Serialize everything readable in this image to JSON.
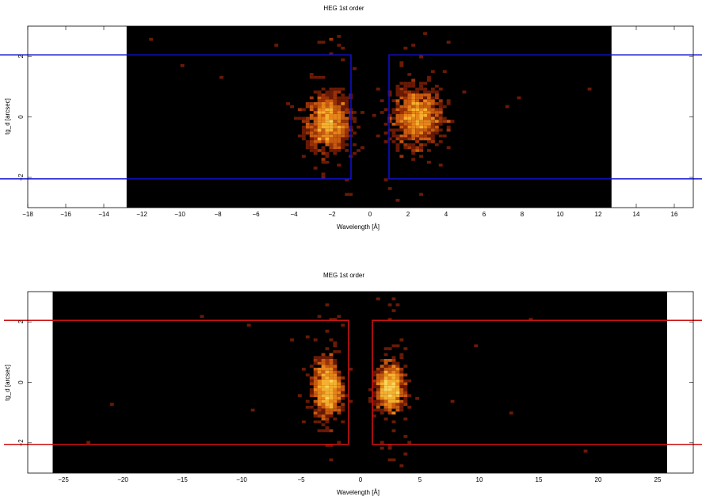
{
  "chart_data": [
    {
      "type": "heatmap",
      "title": "HEG 1st order",
      "xlabel": "Wavelength [Å]",
      "ylabel": "tg_d [arcsec]",
      "xlim": [
        -18,
        17
      ],
      "ylim": [
        -3,
        3
      ],
      "data_xrange": [
        -12.8,
        12.7
      ],
      "xticks": [
        -18,
        -16,
        -14,
        -12,
        -10,
        -8,
        -6,
        -4,
        -2,
        0,
        2,
        4,
        6,
        8,
        10,
        12,
        14,
        16
      ],
      "xticklabels": [
        "−18",
        "−16",
        "−14",
        "−12",
        "−10",
        "−8",
        "−6",
        "−4",
        "−2",
        "0",
        "2",
        "4",
        "6",
        "8",
        "10",
        "12",
        "14",
        "16"
      ],
      "yticks": [
        -2,
        0,
        2
      ],
      "yticklabels": [
        "−2",
        "0",
        "2"
      ],
      "clusters": [
        {
          "x": -2.2,
          "y": -0.2,
          "sx": 0.55,
          "sy": 0.45
        },
        {
          "x": 2.5,
          "y": 0.0,
          "sx": 0.6,
          "sy": 0.45
        }
      ],
      "extraction_regions": {
        "color": "#1010cc",
        "y_range": [
          -2.05,
          2.05
        ],
        "boxes": [
          [
            -20,
            -1.0
          ],
          [
            1.0,
            20
          ]
        ]
      },
      "grid": false
    },
    {
      "type": "heatmap",
      "title": "MEG 1st order",
      "xlabel": "Wavelength [Å]",
      "ylabel": "tg_d [arcsec]",
      "xlim": [
        -28,
        28
      ],
      "ylim": [
        -3,
        3
      ],
      "data_xrange": [
        -25.9,
        25.8
      ],
      "xticks": [
        -25,
        -20,
        -15,
        -10,
        -5,
        0,
        5,
        10,
        15,
        20,
        25
      ],
      "xticklabels": [
        "−25",
        "−20",
        "−15",
        "−10",
        "−5",
        "0",
        "5",
        "10",
        "15",
        "20",
        "25"
      ],
      "yticks": [
        -2,
        0,
        2
      ],
      "yticklabels": [
        "−2",
        "0",
        "2"
      ],
      "clusters": [
        {
          "x": -2.8,
          "y": -0.2,
          "sx": 0.55,
          "sy": 0.45
        },
        {
          "x": 2.5,
          "y": -0.2,
          "sx": 0.55,
          "sy": 0.35
        }
      ],
      "extraction_regions": {
        "color": "#cc1111",
        "y_range": [
          -2.05,
          2.05
        ],
        "boxes": [
          [
            -30,
            -1.0
          ],
          [
            1.0,
            30
          ]
        ]
      },
      "grid": false
    }
  ]
}
